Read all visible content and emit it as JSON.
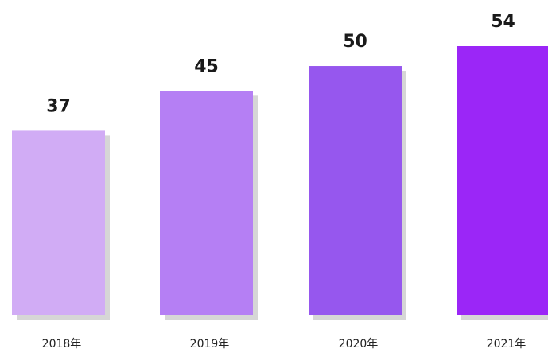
{
  "chart_data": {
    "type": "bar",
    "categories": [
      "2018年",
      "2019年",
      "2020年",
      "2021年"
    ],
    "values": [
      37,
      45,
      50,
      54
    ],
    "data_labels": [
      "37",
      "45",
      "50",
      "54"
    ],
    "colors": [
      "#d1acf5",
      "#b57ff4",
      "#9657ee",
      "#9b26f7"
    ],
    "shadow_color": "#d6d6d6",
    "title": "",
    "xlabel": "",
    "ylabel": "",
    "ylim": [
      0,
      54
    ],
    "grid": false,
    "legend": "none"
  }
}
